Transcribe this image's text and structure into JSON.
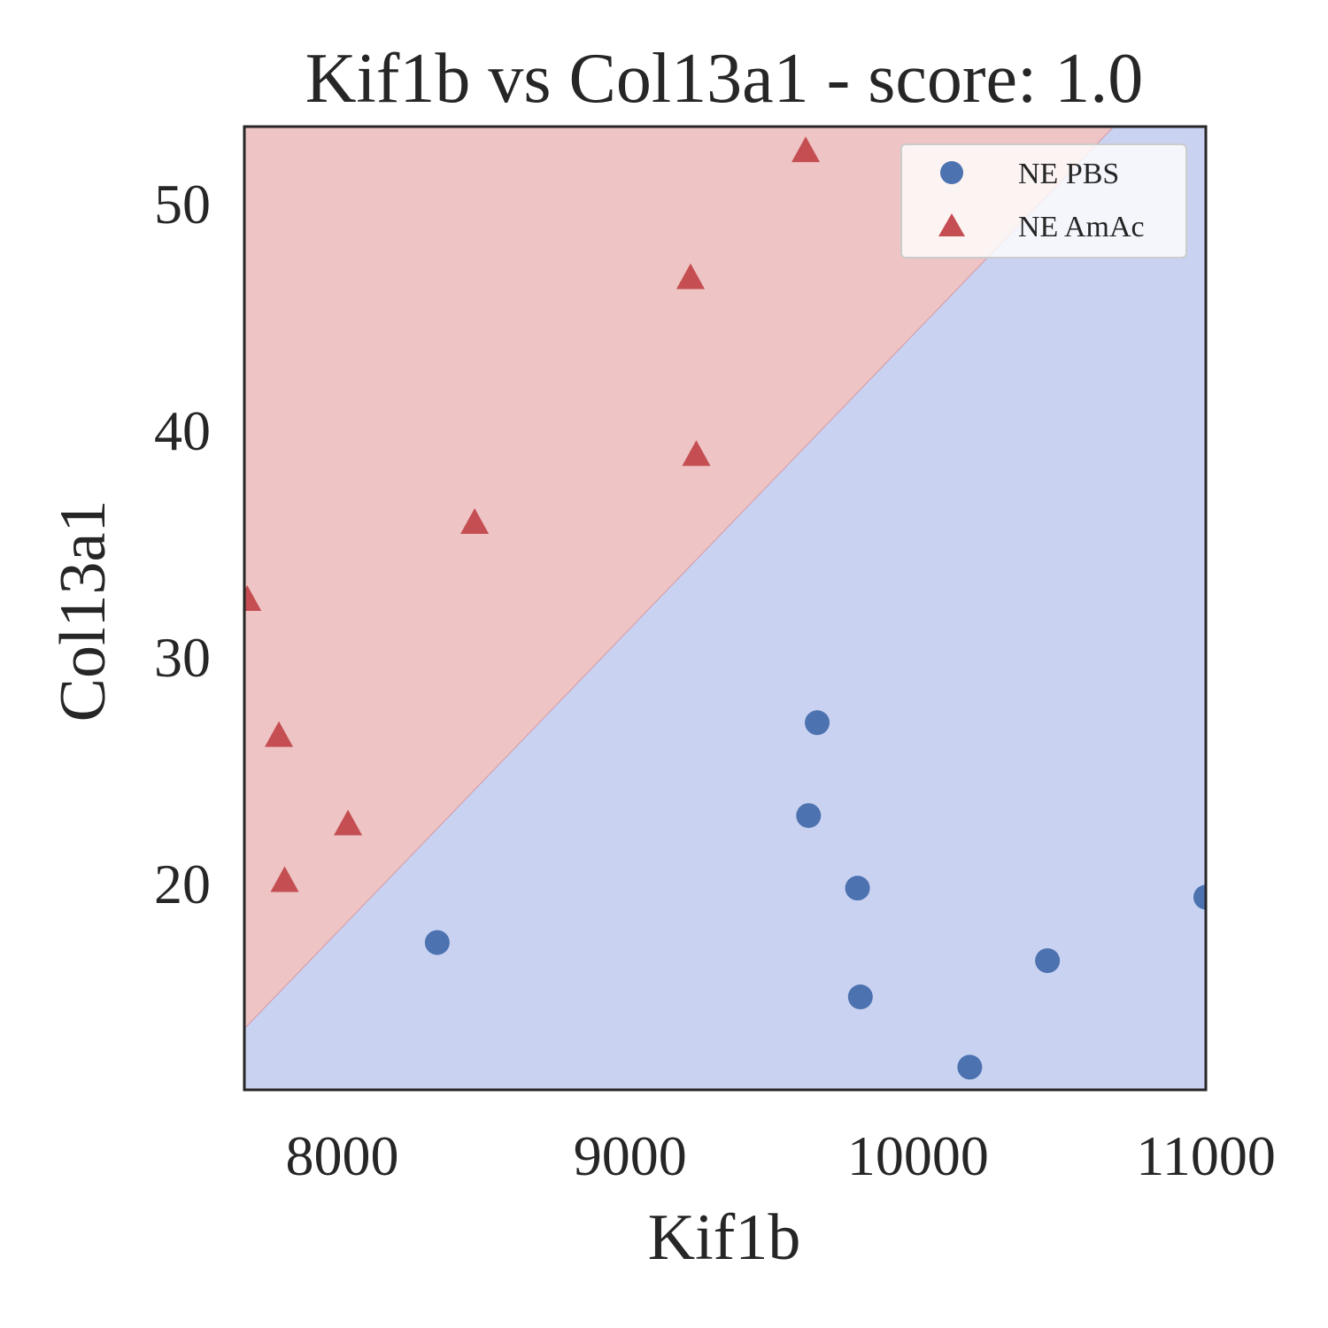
{
  "chart_data": {
    "type": "scatter",
    "title": "Kif1b vs Col13a1 - score: 1.0",
    "xlabel": "Kif1b",
    "ylabel": "Col13a1",
    "xlim": [
      7660,
      11000
    ],
    "ylim": [
      10.9,
      53.4
    ],
    "xticks": [
      8000,
      9000,
      10000,
      11000
    ],
    "yticks": [
      20,
      30,
      40,
      50
    ],
    "grid": false,
    "legend_position": "top-right",
    "decision_boundary": [
      [
        7660,
        13.6
      ],
      [
        10680,
        53.4
      ]
    ],
    "regions": [
      {
        "side": "upper-left",
        "class": "NE AmAc",
        "color": "#eec4c4"
      },
      {
        "side": "lower-right",
        "class": "NE PBS",
        "color": "#c9d2f1"
      }
    ],
    "series": [
      {
        "name": "NE PBS",
        "marker": "circle",
        "color": "#4c72b0",
        "points": [
          [
            8330,
            17.4
          ],
          [
            9620,
            23.0
          ],
          [
            9650,
            27.1
          ],
          [
            9790,
            19.8
          ],
          [
            9800,
            15.0
          ],
          [
            10180,
            11.9
          ],
          [
            10450,
            16.6
          ],
          [
            11000,
            19.4
          ]
        ]
      },
      {
        "name": "NE AmAc",
        "marker": "triangle",
        "color": "#c44e52",
        "points": [
          [
            7670,
            32.5
          ],
          [
            7780,
            26.5
          ],
          [
            7800,
            20.1
          ],
          [
            8020,
            22.6
          ],
          [
            8460,
            35.9
          ],
          [
            9210,
            46.7
          ],
          [
            9230,
            38.9
          ],
          [
            9610,
            52.3
          ]
        ]
      }
    ]
  }
}
